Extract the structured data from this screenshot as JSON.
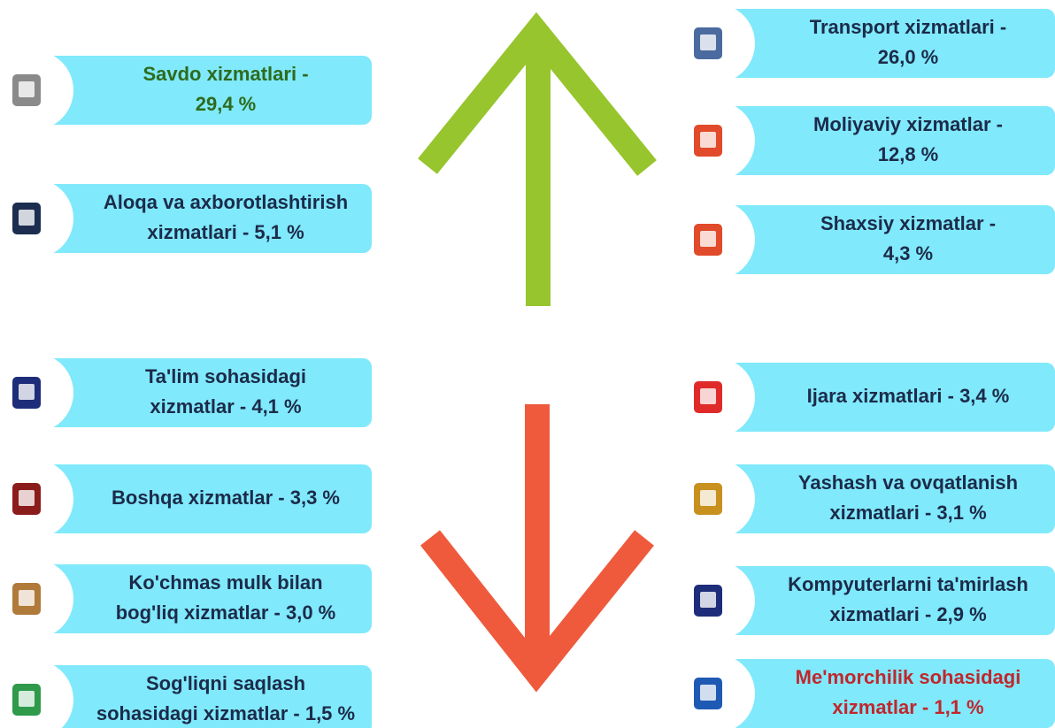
{
  "left": [
    {
      "lines": [
        "Savdo xizmatlari -",
        "29,4 %"
      ]
    },
    {
      "lines": [
        "Aloqa va axborotlashtirish",
        "xizmatlari - 5,1 %"
      ]
    },
    {
      "lines": [
        "Ta'lim sohasidagi",
        "xizmatlar - 4,1 %"
      ]
    },
    {
      "lines": [
        "Boshqa xizmatlar - 3,3 %"
      ]
    },
    {
      "lines": [
        "Ko'chmas mulk bilan",
        "bog'liq xizmatlar - 3,0 %"
      ]
    },
    {
      "lines": [
        "Sog'liqni saqlash",
        "sohasidagi xizmatlar - 1,5 %"
      ]
    }
  ],
  "right": [
    {
      "lines": [
        "Transport xizmatlari -",
        "26,0 %"
      ]
    },
    {
      "lines": [
        "Moliyaviy xizmatlar -",
        "12,8 %"
      ]
    },
    {
      "lines": [
        "Shaxsiy xizmatlar -",
        "4,3 %"
      ]
    },
    {
      "lines": [
        "Ijara xizmatlari - 3,4 %"
      ]
    },
    {
      "lines": [
        "Yashash va ovqatlanish",
        "xizmatlari - 3,1 %"
      ]
    },
    {
      "lines": [
        "Kompyuterlarni ta'mirlash",
        "xizmatlari - 2,9 %"
      ]
    },
    {
      "lines": [
        "Me'morchilik sohasidagi",
        "xizmatlar - 1,1 %"
      ]
    }
  ]
}
